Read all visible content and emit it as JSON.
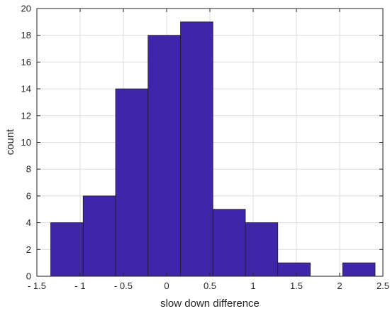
{
  "chart_data": {
    "type": "bar",
    "subtype": "histogram",
    "xlabel": "slow down difference",
    "ylabel": "count",
    "xlim": [
      -1.5,
      2.5
    ],
    "ylim": [
      0,
      20
    ],
    "xticks": [
      -1.5,
      -1,
      -0.5,
      0,
      0.5,
      1,
      1.5,
      2,
      2.5
    ],
    "xtick_labels": [
      "- 1.5",
      "- 1",
      "- 0.5",
      "0",
      "0.5",
      "1",
      "1.5",
      "2",
      "2.5"
    ],
    "yticks": [
      0,
      2,
      4,
      6,
      8,
      10,
      12,
      14,
      16,
      18,
      20
    ],
    "ytick_labels": [
      "0",
      "2",
      "4",
      "6",
      "8",
      "10",
      "12",
      "14",
      "16",
      "18",
      "20"
    ],
    "bin_edges": [
      -1.34,
      -0.965,
      -0.59,
      -0.215,
      0.16,
      0.535,
      0.91,
      1.285,
      1.66,
      2.035,
      2.41
    ],
    "values": [
      4,
      6,
      14,
      18,
      19,
      5,
      4,
      1,
      0,
      1
    ],
    "grid": true,
    "colors": {
      "bar": "#3f25a7",
      "bar_edge": "#1e1e1e",
      "grid": "#dcdcdc",
      "axis": "#262626"
    }
  }
}
